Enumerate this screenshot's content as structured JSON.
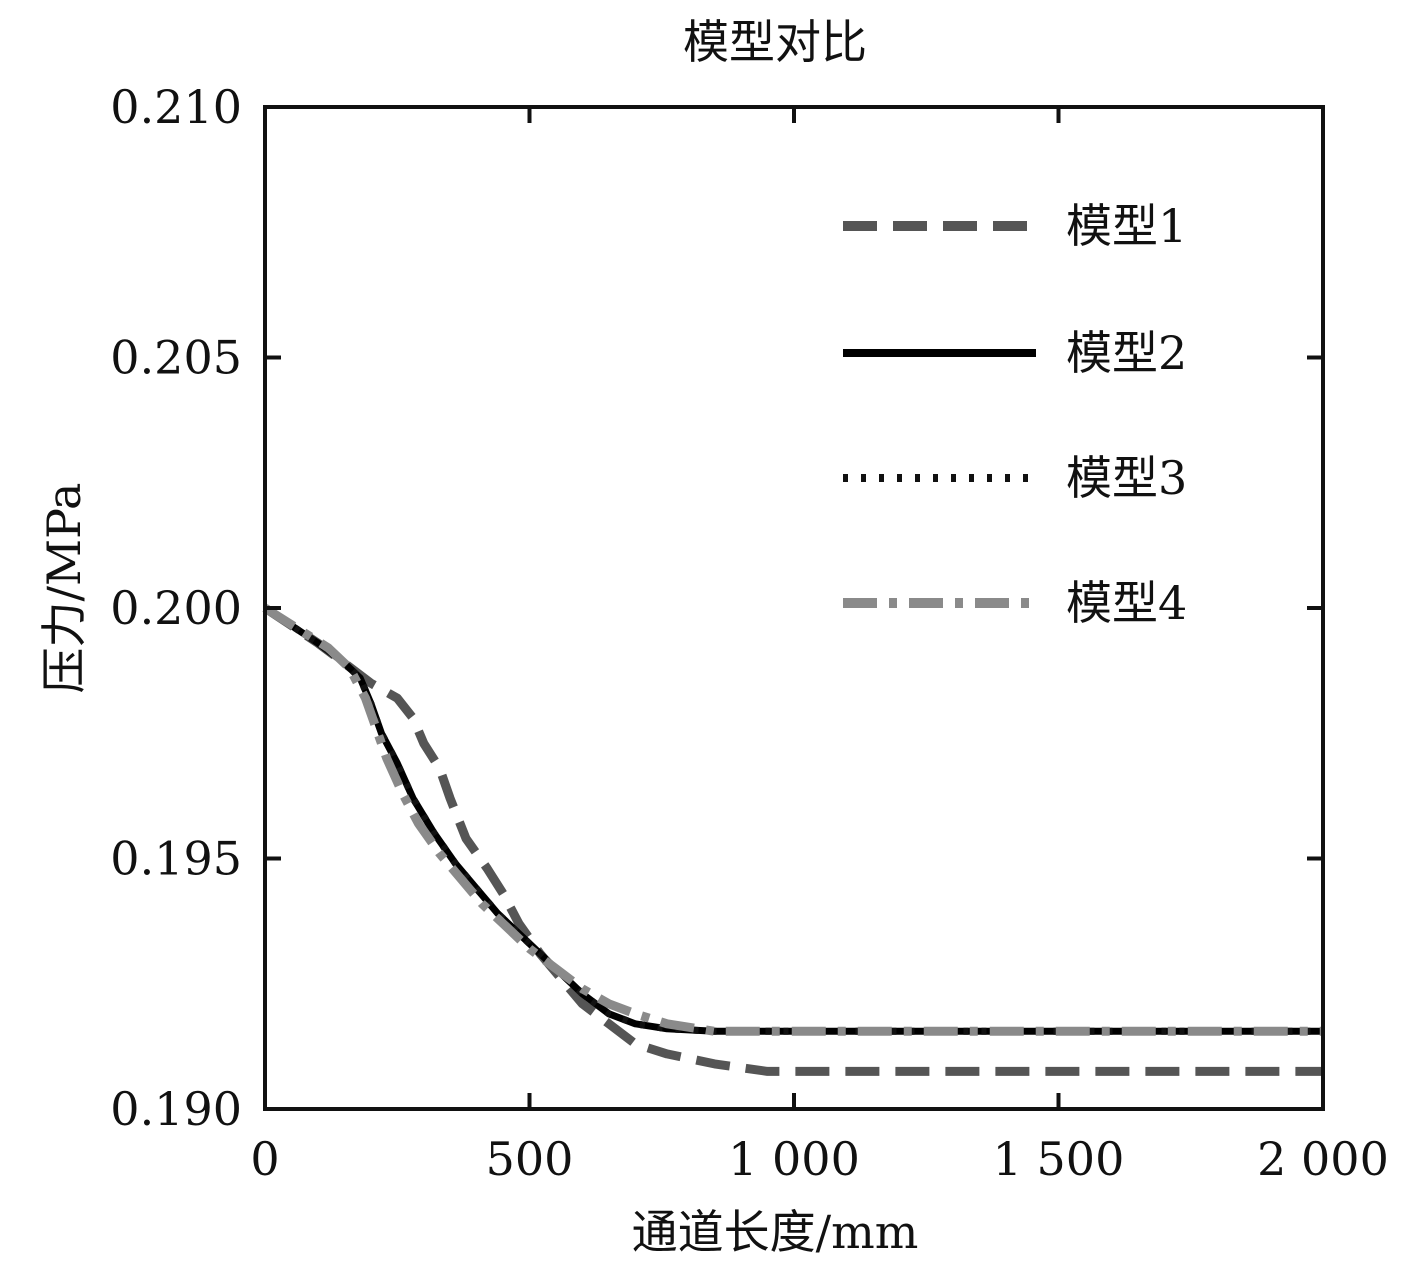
{
  "chart_data": {
    "type": "line",
    "title": "模型对比",
    "xlabel": "通道长度/mm",
    "ylabel": "压力/MPa",
    "xlim": [
      0,
      2000
    ],
    "ylim": [
      0.19,
      0.21
    ],
    "xticks": [
      0,
      500,
      1000,
      1500,
      2000
    ],
    "xtick_labels": [
      "0",
      "500",
      "1 000",
      "1 500",
      "2 000"
    ],
    "yticks": [
      0.19,
      0.195,
      0.2,
      0.205,
      0.21
    ],
    "ytick_labels": [
      "0.190",
      "0.195",
      "0.200",
      "0.205",
      "0.210"
    ],
    "grid": false,
    "legend_position": "top-right",
    "series": [
      {
        "name": "模型1",
        "style": "dashed",
        "color": "#555555",
        "x": [
          0,
          100,
          150,
          200,
          250,
          280,
          300,
          330,
          350,
          380,
          420,
          450,
          480,
          520,
          560,
          600,
          650,
          700,
          760,
          850,
          950,
          1200,
          1500,
          1800,
          2000
        ],
        "y": [
          0.2,
          0.1993,
          0.1989,
          0.1985,
          0.1982,
          0.1978,
          0.1973,
          0.1968,
          0.1962,
          0.1954,
          0.1948,
          0.1943,
          0.1937,
          0.1931,
          0.1926,
          0.1921,
          0.1917,
          0.1913,
          0.1911,
          0.1909,
          0.19075,
          0.19075,
          0.19075,
          0.19075,
          0.19075
        ]
      },
      {
        "name": "模型2",
        "style": "solid",
        "color": "#000000",
        "x": [
          0,
          100,
          150,
          180,
          200,
          220,
          250,
          280,
          320,
          360,
          400,
          440,
          480,
          520,
          560,
          600,
          650,
          700,
          760,
          850,
          1000,
          1200,
          1500,
          1800,
          2000
        ],
        "y": [
          0.2,
          0.1993,
          0.1989,
          0.1986,
          0.1981,
          0.1975,
          0.1969,
          0.1962,
          0.1955,
          0.1949,
          0.1944,
          0.1939,
          0.1935,
          0.1931,
          0.1927,
          0.1923,
          0.1919,
          0.1917,
          0.1916,
          0.19155,
          0.19155,
          0.19155,
          0.19155,
          0.19155,
          0.19155
        ]
      },
      {
        "name": "模型3",
        "style": "dotted",
        "color": "#111111",
        "x": [
          0,
          100,
          150,
          180,
          200,
          220,
          250,
          280,
          320,
          360,
          400,
          440,
          480,
          520,
          560,
          600,
          650,
          700,
          760,
          850,
          1000,
          1200,
          1500,
          1800,
          2000
        ],
        "y": [
          0.2,
          0.1993,
          0.1989,
          0.1986,
          0.1981,
          0.1975,
          0.1969,
          0.1962,
          0.1955,
          0.1949,
          0.1944,
          0.1939,
          0.1935,
          0.1931,
          0.1927,
          0.1923,
          0.1919,
          0.1917,
          0.1916,
          0.19155,
          0.19155,
          0.19155,
          0.19155,
          0.19155,
          0.19155
        ]
      },
      {
        "name": "模型4",
        "style": "dashdot",
        "color": "#8a8a8a",
        "x": [
          0,
          60,
          120,
          160,
          190,
          210,
          230,
          260,
          290,
          330,
          370,
          410,
          450,
          500,
          550,
          600,
          650,
          700,
          760,
          850,
          1000,
          1200,
          1500,
          1800,
          2000
        ],
        "y": [
          0.2,
          0.1996,
          0.1992,
          0.1988,
          0.1982,
          0.1976,
          0.197,
          0.1963,
          0.1957,
          0.1951,
          0.1946,
          0.1941,
          0.1937,
          0.1932,
          0.1928,
          0.1924,
          0.1921,
          0.1919,
          0.1917,
          0.19155,
          0.19155,
          0.19155,
          0.19155,
          0.19155,
          0.19155
        ]
      }
    ]
  }
}
